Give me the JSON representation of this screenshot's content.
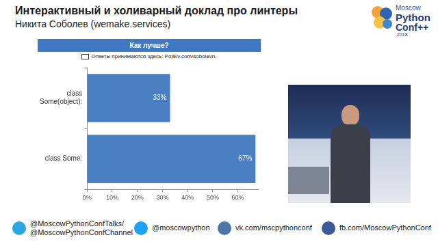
{
  "header": {
    "title": "Интерактивный и холиварный доклад про линтеры",
    "author": "Никита Соболев (wemake.services)"
  },
  "logo": {
    "line1": "Moscow",
    "line2": "Python",
    "line3": "Conf++",
    "line4": "2018"
  },
  "chart_data": {
    "type": "bar",
    "orientation": "horizontal",
    "title": "Как лучше?",
    "subtitle": "Ответы принимаются здесь: PollEv.com/sobolevn.",
    "categories": [
      "class Some(object):",
      "class Some:"
    ],
    "values": [
      33,
      67
    ],
    "value_labels": [
      "33%",
      "67%"
    ],
    "data_labels": true,
    "color": "#4a7fc1",
    "xlim": [
      0,
      68
    ],
    "xticks": [
      {
        "value": 0,
        "label": "0%"
      },
      {
        "value": 10,
        "label": "10%"
      },
      {
        "value": 20,
        "label": "20%"
      },
      {
        "value": 30,
        "label": "30%"
      },
      {
        "value": 40,
        "label": "40%"
      },
      {
        "value": 50,
        "label": "50%"
      },
      {
        "value": 60,
        "label": "60%"
      }
    ],
    "grid": false
  },
  "footer": {
    "telegram_line1": "@MoscowPythonConfTalks/",
    "telegram_line2": "@MoscowPythonConfChannel",
    "twitter": "@moscowpython",
    "vk": "vk.com/mscpythonconf",
    "facebook": "fb.com/MoscowPythonConf"
  }
}
